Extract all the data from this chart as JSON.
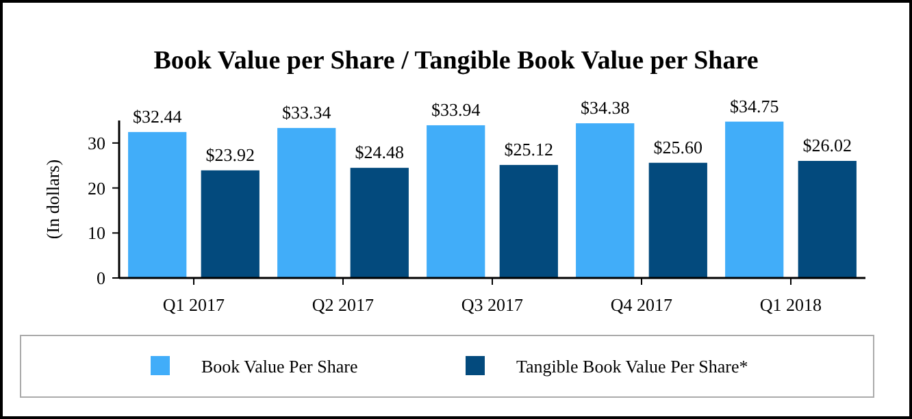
{
  "chart_data": {
    "type": "bar",
    "title": "Book Value per Share / Tangible Book Value per Share",
    "ylabel": "(In dollars)",
    "categories": [
      "Q1 2017",
      "Q2 2017",
      "Q3 2017",
      "Q4 2017",
      "Q1 2018"
    ],
    "series": [
      {
        "name": "Book Value Per Share",
        "color": "#41adf9",
        "values": [
          32.44,
          33.34,
          33.94,
          34.38,
          34.75
        ],
        "value_labels": [
          "$32.44",
          "$33.34",
          "$33.94",
          "$34.38",
          "$34.75"
        ]
      },
      {
        "name": "Tangible Book Value Per Share*",
        "color": "#034a7d",
        "values": [
          23.92,
          24.48,
          25.12,
          25.6,
          26.02
        ],
        "value_labels": [
          "$23.92",
          "$24.48",
          "$25.12",
          "$25.60",
          "$26.02"
        ]
      }
    ],
    "ylim": [
      0,
      35
    ],
    "yticks": [
      0,
      10,
      20,
      30
    ],
    "grid": false,
    "legend": "bottom"
  }
}
